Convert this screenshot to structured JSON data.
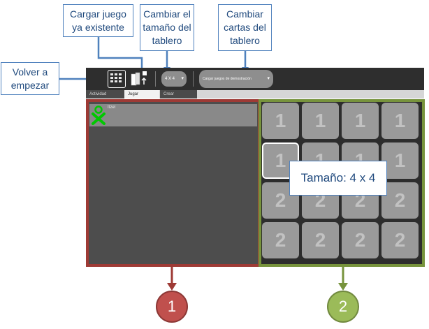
{
  "callouts": {
    "load_game": "Cargar juego\nya existente",
    "change_size": "Cambiar el\ntamaño del\ntablero",
    "change_cards": "Cambiar\ncartas del\ntablero",
    "restart": "Volver a\nempezar"
  },
  "toolbar": {
    "size_select": "4 X 4",
    "demo_select": "Cargar juegos de demostración"
  },
  "tabs": [
    "Actividad",
    "Jugar",
    "Crear"
  ],
  "player": {
    "name": "Itzel"
  },
  "board": {
    "rows": [
      [
        "1",
        "1",
        "1",
        "1"
      ],
      [
        "1",
        "1",
        "1",
        "1"
      ],
      [
        "2",
        "2",
        "2",
        "2"
      ],
      [
        "2",
        "2",
        "2",
        "2"
      ]
    ],
    "size_label": "Tamaño: 4 x 4"
  },
  "markers": [
    "1",
    "2"
  ],
  "colors": {
    "panel1_border": "#9e3a35",
    "panel2_border": "#77933c",
    "callout_border": "#4f81bd",
    "player_icon": "#00c800"
  }
}
